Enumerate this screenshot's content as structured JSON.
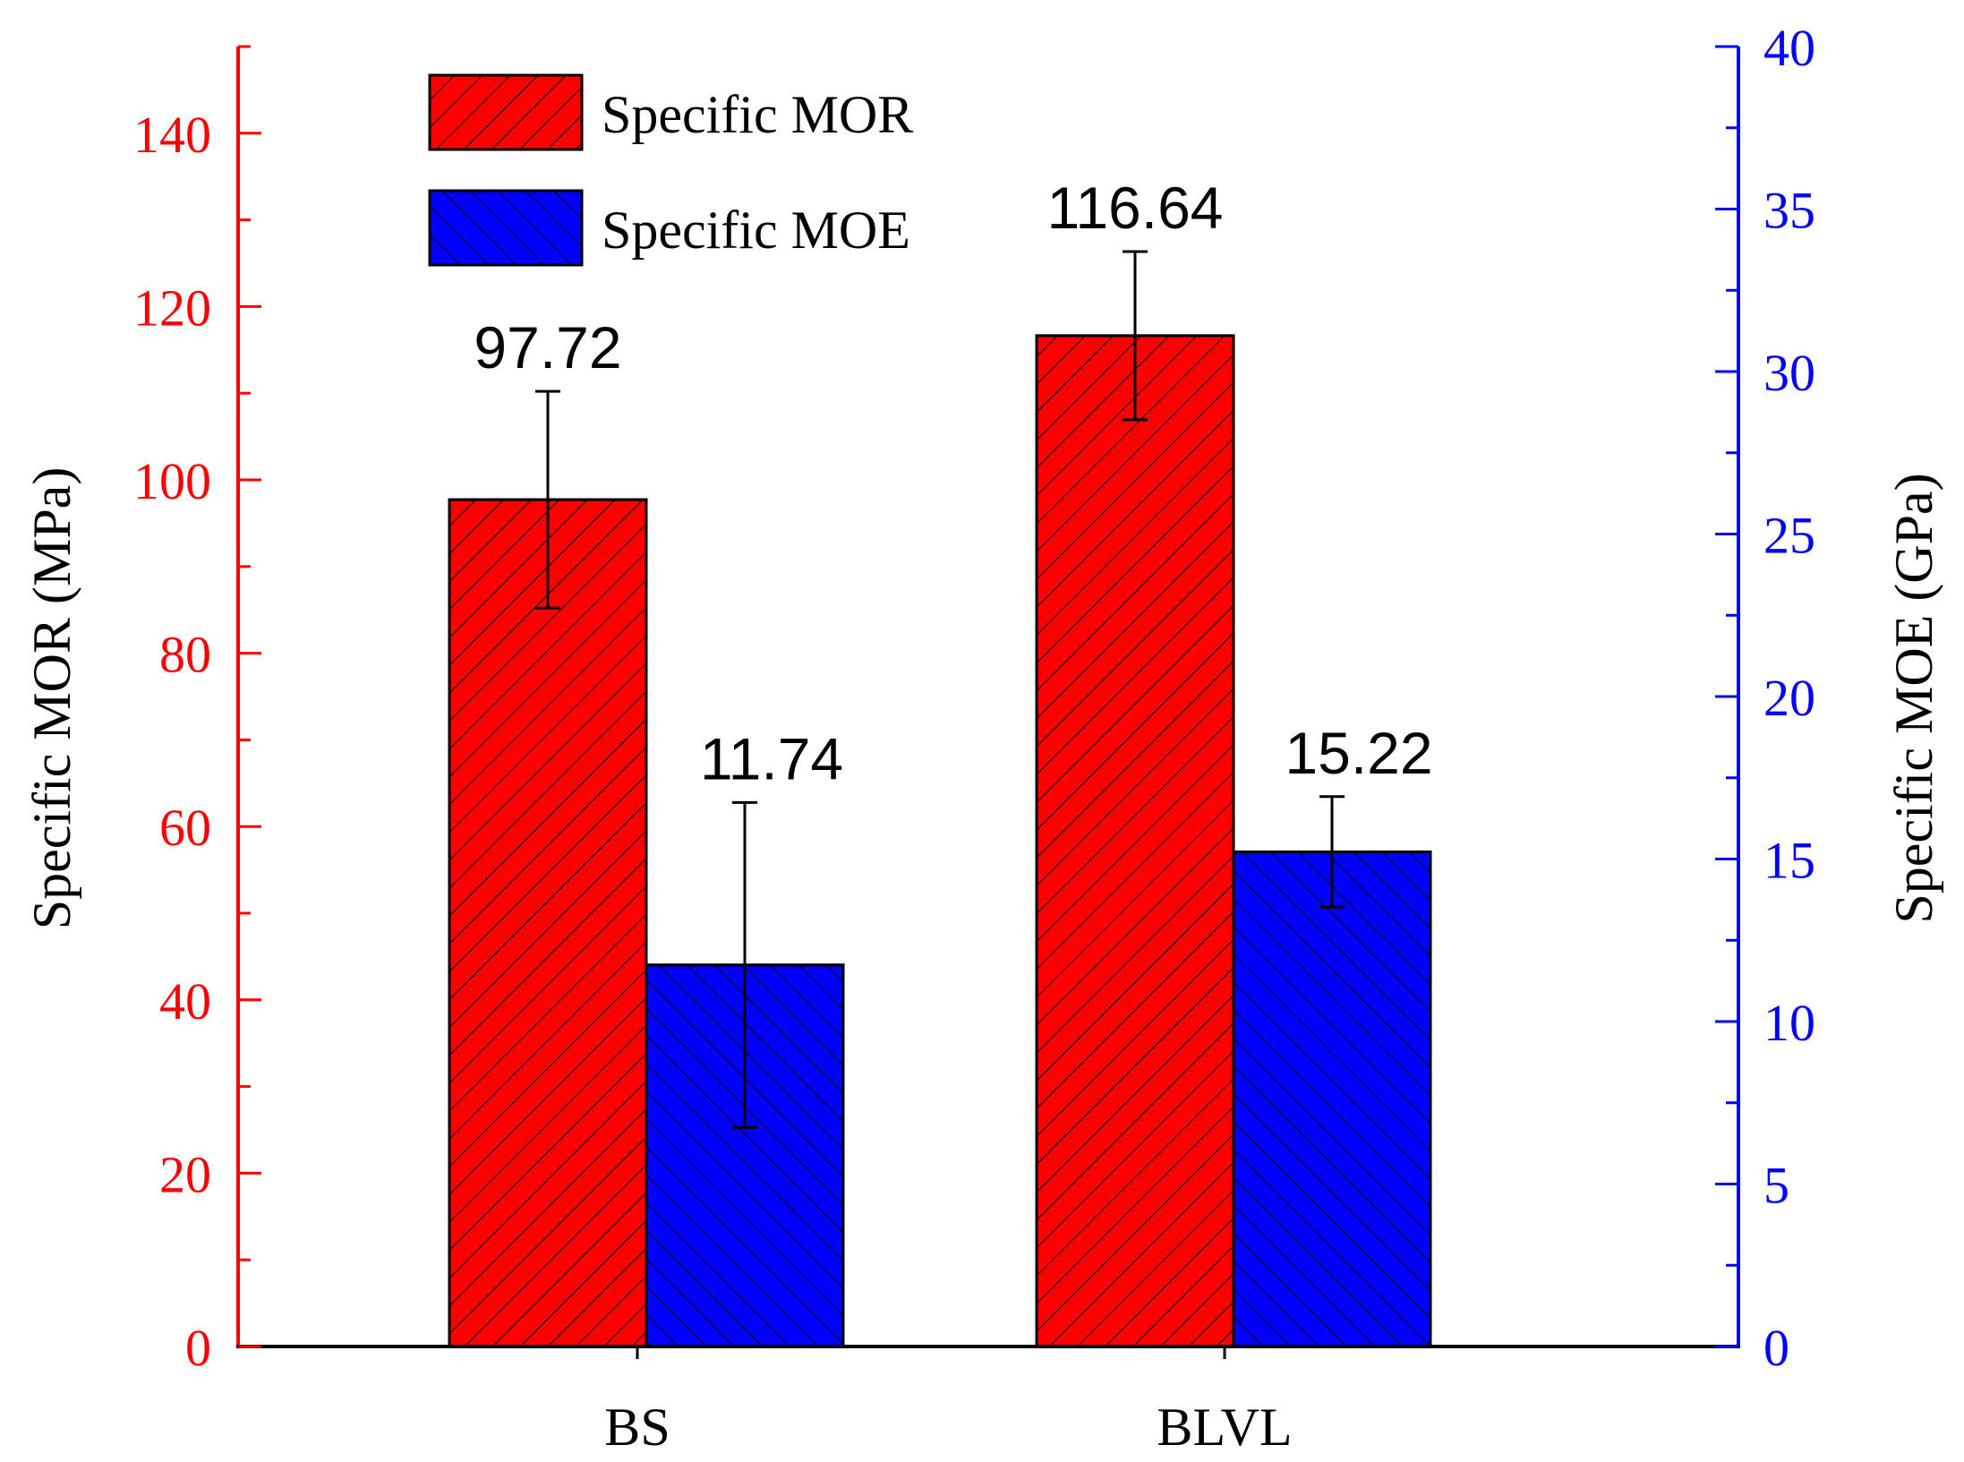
{
  "chart_data": {
    "type": "bar",
    "categories": [
      "BS",
      "BLVL"
    ],
    "series": [
      {
        "name": "Specific MOR",
        "axis": "left",
        "color": "#ff0000",
        "values": [
          97.72,
          116.64
        ],
        "errors": [
          12.5,
          9.7
        ],
        "labels": [
          "97.72",
          "116.64"
        ]
      },
      {
        "name": "Specific MOE",
        "axis": "right",
        "color": "#0000ff",
        "values": [
          11.74,
          15.22
        ],
        "errors": [
          5.0,
          1.7
        ],
        "labels": [
          "11.74",
          "15.22"
        ]
      }
    ],
    "y_left": {
      "label": "Specific MOR (MPa)",
      "range": [
        0,
        150
      ],
      "ticks": [
        0,
        20,
        40,
        60,
        80,
        100,
        120,
        140
      ],
      "color": "#ff0000"
    },
    "y_right": {
      "label": "Specific MOE (GPa)",
      "range": [
        0,
        40
      ],
      "ticks": [
        0,
        5,
        10,
        15,
        20,
        25,
        30,
        35,
        40
      ],
      "color": "#0000ff"
    },
    "legend": {
      "position": "top-left",
      "entries": [
        "Specific MOR",
        "Specific MOE"
      ]
    },
    "grid": false,
    "hatch": true
  }
}
